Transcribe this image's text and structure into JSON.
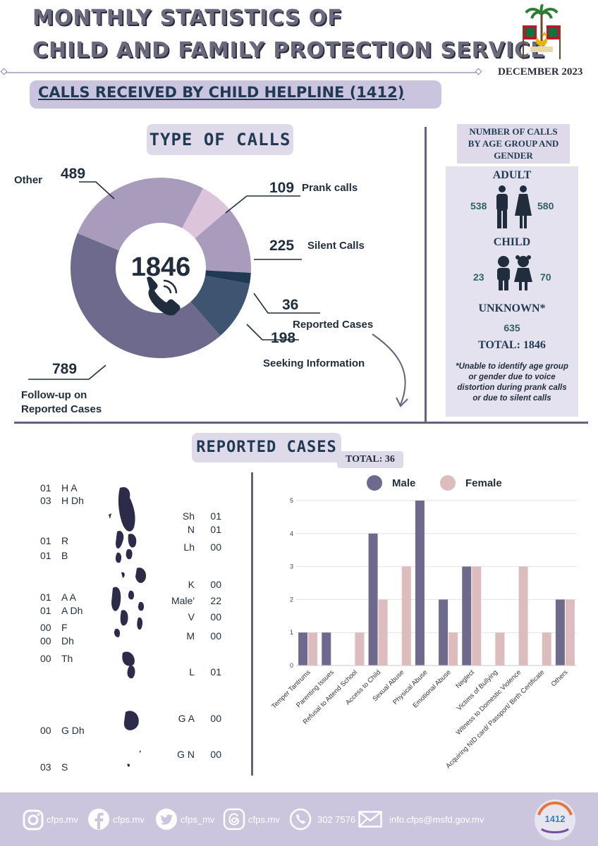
{
  "header": {
    "title_line1": "MONTHLY STATISTICS OF",
    "title_line2": "CHILD AND FAMILY PROTECTION SERVICE",
    "date": "DECEMBER 2023",
    "banner": "CALLS RECEIVED BY CHILD HELPLINE (1412)"
  },
  "type_of_calls": {
    "heading": "TYPE OF CALLS",
    "total": "1846",
    "items": [
      {
        "label": "Prank calls",
        "value": "109"
      },
      {
        "label": "Silent Calls",
        "value": "225"
      },
      {
        "label": "Reported Cases",
        "value": "36"
      },
      {
        "label": "Seeking Information",
        "value": "198"
      },
      {
        "label": "Follow-up on Reported Cases",
        "value": "789"
      },
      {
        "label": "Other",
        "value": "489"
      }
    ]
  },
  "age_group": {
    "heading_line1": "NUMBER OF CALLS",
    "heading_line2": "BY AGE GROUP AND",
    "heading_line3": "GENDER",
    "adult_label": "ADULT",
    "adult_male": "538",
    "adult_female": "580",
    "child_label": "CHILD",
    "child_male": "23",
    "child_female": "70",
    "unknown_label": "UNKNOWN*",
    "unknown_value": "635",
    "total_label": "TOTAL: 1846",
    "note_line1": "*Unable to identify age group",
    "note_line2": "or gender due to voice",
    "note_line3": "distortion during prank calls",
    "note_line4": "or due to silent calls"
  },
  "reported_cases": {
    "heading": "REPORTED CASES",
    "total_label": "TOTAL: 36",
    "atolls_left": [
      {
        "code": "01",
        "name": "H A"
      },
      {
        "code": "03",
        "name": "H Dh"
      },
      {
        "code": "01",
        "name": "R"
      },
      {
        "code": "01",
        "name": "B"
      },
      {
        "code": "01",
        "name": "A A"
      },
      {
        "code": "01",
        "name": "A Dh"
      },
      {
        "code": "00",
        "name": "F"
      },
      {
        "code": "00",
        "name": "Dh"
      },
      {
        "code": "00",
        "name": "Th"
      },
      {
        "code": "00",
        "name": "G Dh"
      },
      {
        "code": "03",
        "name": "S"
      }
    ],
    "atolls_right": [
      {
        "name": "Sh",
        "code": "01"
      },
      {
        "name": "N",
        "code": "01"
      },
      {
        "name": "Lh",
        "code": "00"
      },
      {
        "name": "K",
        "code": "00"
      },
      {
        "name": "Male'",
        "code": "22"
      },
      {
        "name": "V",
        "code": "00"
      },
      {
        "name": "M",
        "code": "00"
      },
      {
        "name": "L",
        "code": "01"
      },
      {
        "name": "G A",
        "code": "00"
      },
      {
        "name": "G N",
        "code": "00"
      }
    ]
  },
  "chart_data": [
    {
      "type": "pie",
      "title": "TYPE OF CALLS",
      "center_label": "1846",
      "categories": [
        "Prank calls",
        "Silent Calls",
        "Reported Cases",
        "Seeking Information",
        "Follow-up on Reported Cases",
        "Other"
      ],
      "values": [
        109,
        225,
        36,
        198,
        789,
        489
      ],
      "colors": [
        "#dcc4da",
        "#a89bbb",
        "#1f3a52",
        "#3e5470",
        "#6e6a8e",
        "#a89bbb"
      ]
    },
    {
      "type": "bar",
      "categories": [
        "Temper Tantrums",
        "Parenting Issues",
        "Refusal to Attend School",
        "Access to Child",
        "Sexual Abuse",
        "Physical Abuse",
        "Emotional Abuse",
        "Neglect",
        "Victims of Bullying",
        "Witness to Domestic Violence",
        "Acquiring NID card/ Passport/ Birth Certificate",
        "Others"
      ],
      "series": [
        {
          "name": "Male",
          "color": "#6e6a8e",
          "values": [
            1,
            1,
            0,
            4,
            0,
            5,
            2,
            3,
            0,
            0,
            0,
            2
          ]
        },
        {
          "name": "Female",
          "color": "#dcbcbc",
          "values": [
            1,
            0,
            1,
            2,
            3,
            0,
            1,
            3,
            1,
            3,
            1,
            2
          ]
        }
      ],
      "ylim": [
        0,
        5
      ],
      "yticks": [
        "0",
        "1",
        "2",
        "3",
        "4",
        "5"
      ],
      "grid": true,
      "legend": "top"
    }
  ],
  "footer": {
    "instagram": "cfps.mv",
    "facebook": "cfps.mv",
    "twitter": "cfps_mv",
    "threads": "cfps.mv",
    "phone": "302 7576",
    "email": "info.cfps@msfd.gov.mv",
    "logo_text": "1412"
  }
}
